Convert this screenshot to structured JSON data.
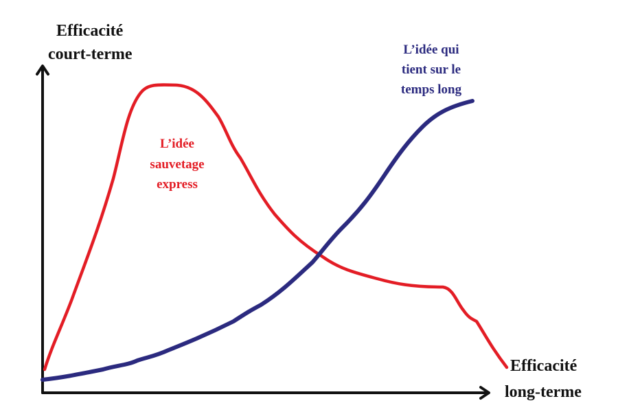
{
  "y_axis_label": {
    "lines": [
      "Efficacité",
      "court-terme"
    ]
  },
  "x_axis_label": {
    "lines": [
      "Efficacité",
      "long-terme"
    ]
  },
  "red_curve_label": {
    "lines": [
      "L’idée",
      "sauvetage",
      "express"
    ]
  },
  "blue_curve_label": {
    "lines": [
      "L’idée qui",
      "tient sur le",
      "temps long"
    ]
  }
}
